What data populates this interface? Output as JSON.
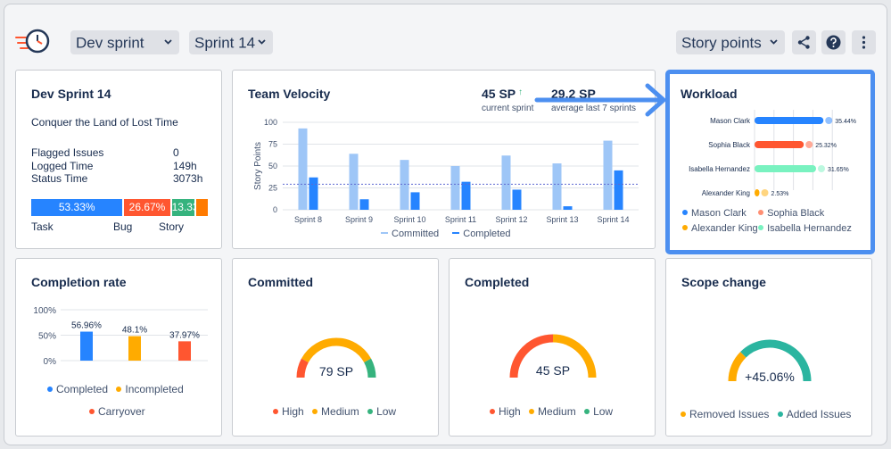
{
  "header": {
    "board_dropdown": "Dev sprint",
    "sprint_dropdown": "Sprint 14",
    "metric_dropdown": "Story points"
  },
  "sprint_card": {
    "title": "Dev Sprint 14",
    "goal": "Conquer the Land of Lost Time",
    "stats": [
      {
        "label": "Flagged Issues",
        "value": "0"
      },
      {
        "label": "Logged Time",
        "value": "149h"
      },
      {
        "label": "Status Time",
        "value": "3073h"
      }
    ],
    "breakdown": [
      {
        "pct": "53.33%",
        "value": 53.33,
        "color": "#2684ff"
      },
      {
        "pct": "26.67%",
        "value": 26.67,
        "color": "#ff5630"
      },
      {
        "pct": "13.33%",
        "value": 13.33,
        "color": "#36b37e"
      },
      {
        "pct": "",
        "value": 6.67,
        "color": "#ff7a00"
      }
    ],
    "types": [
      "Task",
      "Bug",
      "Story"
    ]
  },
  "velocity": {
    "title": "Team Velocity",
    "current_value": "45 SP",
    "current_label": "current sprint",
    "avg_value": "29.2 SP",
    "avg_label": "average last 7 sprints",
    "legend_committed": "Committed",
    "legend_completed": "Completed"
  },
  "workload": {
    "title": "Workload",
    "legend": [
      {
        "name": "Mason Clark",
        "color": "#2684ff"
      },
      {
        "name": "Sophia Black",
        "color": "#ff8f73"
      },
      {
        "name": "Alexander King",
        "color": "#ffab00"
      },
      {
        "name": "Isabella Hernandez",
        "color": "#79f2c0"
      }
    ]
  },
  "completion": {
    "title": "Completion rate",
    "legend_completed": "Completed",
    "legend_incompleted": "Incompleted",
    "legend_carryover": "Carryover"
  },
  "committed_card": {
    "title": "Committed",
    "value": "79 SP"
  },
  "completed_card": {
    "title": "Completed",
    "value": "45 SP"
  },
  "scope_card": {
    "title": "Scope change",
    "value": "+45.06%",
    "legend_removed": "Removed Issues",
    "legend_added": "Added Issues"
  },
  "gauge_legend": {
    "high": "High",
    "medium": "Medium",
    "low": "Low"
  },
  "colors": {
    "blue": "#2684ff",
    "light_blue": "#9ec6f7",
    "red": "#ff5630",
    "orange": "#ffab00",
    "green": "#36b37e",
    "teal": "#2bb5a0",
    "highlight_border": "#4c8ff0"
  },
  "chart_data": [
    {
      "type": "bar",
      "title": "Team Velocity",
      "ylabel": "Story Points",
      "ylim": [
        0,
        100
      ],
      "yticks": [
        0,
        25,
        50,
        75,
        100
      ],
      "categories": [
        "Sprint 8",
        "Sprint 9",
        "Sprint 10",
        "Sprint 11",
        "Sprint 12",
        "Sprint 13",
        "Sprint 14"
      ],
      "series": [
        {
          "name": "Committed",
          "values": [
            93,
            64,
            57,
            50,
            62,
            53,
            79
          ],
          "color": "#9ec6f7"
        },
        {
          "name": "Completed",
          "values": [
            37,
            12,
            20,
            32,
            23,
            4,
            45
          ],
          "color": "#2684ff"
        }
      ],
      "average": 29.2
    },
    {
      "type": "bar",
      "title": "Workload",
      "orientation": "horizontal",
      "categories": [
        "Mason Clark",
        "Sophia Black",
        "Isabella Hernandez",
        "Alexander King"
      ],
      "values": [
        35.44,
        25.32,
        31.65,
        2.53
      ],
      "labels": [
        "35.44%",
        "25.32%",
        "31.65%",
        "2.53%"
      ],
      "colors": [
        "#2684ff",
        "#ff5630",
        "#79f2c0",
        "#ffab00"
      ]
    },
    {
      "type": "bar",
      "title": "Completion rate",
      "ylim": [
        0,
        100
      ],
      "yticks": [
        "0%",
        "50%",
        "100%"
      ],
      "categories": [
        "Completed",
        "Incompleted",
        "Carryover"
      ],
      "values": [
        56.96,
        48.1,
        37.97
      ],
      "labels": [
        "56.96%",
        "48.1%",
        "37.97%"
      ],
      "colors": [
        "#2684ff",
        "#ffab00",
        "#ff5630"
      ]
    }
  ]
}
